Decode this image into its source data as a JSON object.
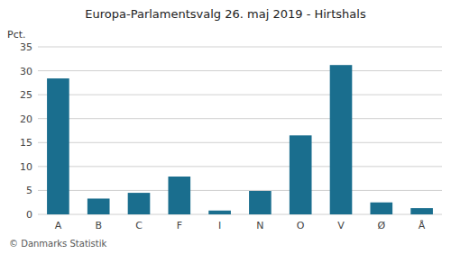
{
  "chart_data": {
    "type": "bar",
    "title": "Europa-Parlamentsvalg 26. maj 2019 - Hirtshals",
    "ylabel": "Pct.",
    "footer": "© Danmarks Statistik",
    "categories": [
      "A",
      "B",
      "C",
      "F",
      "I",
      "N",
      "O",
      "V",
      "Ø",
      "Å"
    ],
    "values": [
      28.4,
      3.3,
      4.5,
      7.9,
      0.8,
      4.9,
      16.5,
      31.2,
      2.5,
      1.3
    ],
    "color": "#1a6e8e",
    "ylim": [
      0,
      35
    ],
    "yticks": [
      0,
      5,
      10,
      15,
      20,
      25,
      30,
      35
    ],
    "grid": true
  }
}
